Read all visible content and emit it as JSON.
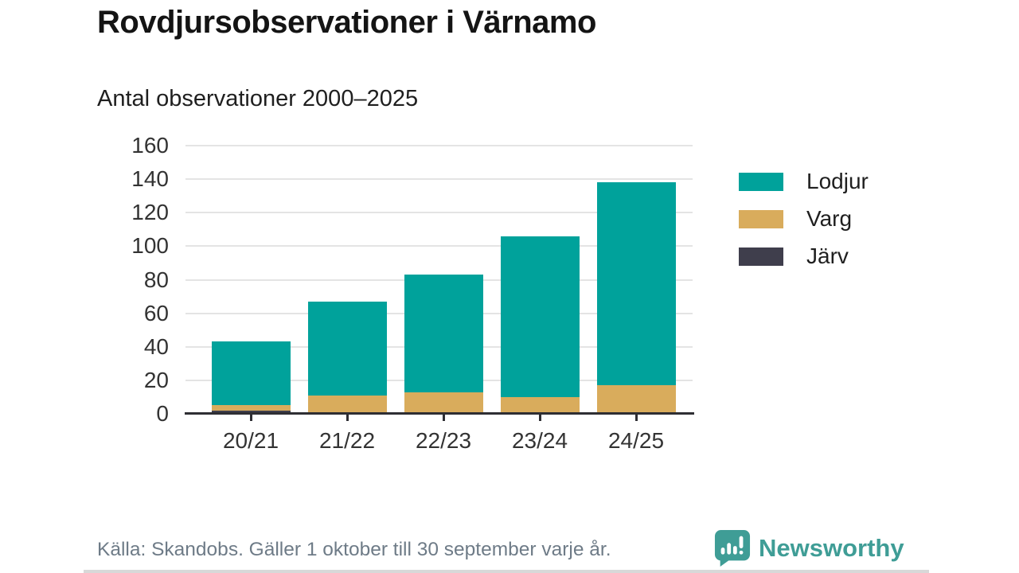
{
  "title": "Rovdjursobservationer i Värnamo",
  "subtitle": "Antal observationer 2000–2025",
  "footer": {
    "source": "Källa: Skandobs. Gäller 1 oktober till 30 september varje år."
  },
  "branding": {
    "name": "Newsworthy",
    "color": "#3f9d96",
    "icon": "newsworthy-bubble-chart-icon"
  },
  "colors": {
    "lodjur": "#00a29b",
    "varg": "#d9ac5c",
    "jarv": "#3f3e4c",
    "axis": "#2e2e33",
    "grid": "#e4e4e4",
    "tick_text": "#333333",
    "footer_text": "#6e7b87",
    "title_text": "#141414"
  },
  "chart_data": {
    "type": "bar",
    "stacked": true,
    "title": "Rovdjursobservationer i Värnamo",
    "subtitle": "Antal observationer 2000–2025",
    "xlabel": "",
    "ylabel": "",
    "categories": [
      "20/21",
      "21/22",
      "22/23",
      "23/24",
      "24/25"
    ],
    "series": [
      {
        "name": "Lodjur",
        "color": "#00a29b",
        "values": [
          38,
          56,
          70,
          96,
          121
        ]
      },
      {
        "name": "Varg",
        "color": "#d9ac5c",
        "values": [
          3,
          11,
          13,
          10,
          16
        ]
      },
      {
        "name": "Järv",
        "color": "#3f3e4c",
        "values": [
          2,
          0,
          0,
          0,
          1
        ]
      }
    ],
    "stack_order_bottom_to_top": [
      "Järv",
      "Varg",
      "Lodjur"
    ],
    "totals": [
      43,
      67,
      83,
      106,
      138
    ],
    "ylim": [
      0,
      160
    ],
    "yticks": [
      0,
      20,
      40,
      60,
      80,
      100,
      120,
      140,
      160
    ],
    "grid": true,
    "legend_position": "right"
  }
}
